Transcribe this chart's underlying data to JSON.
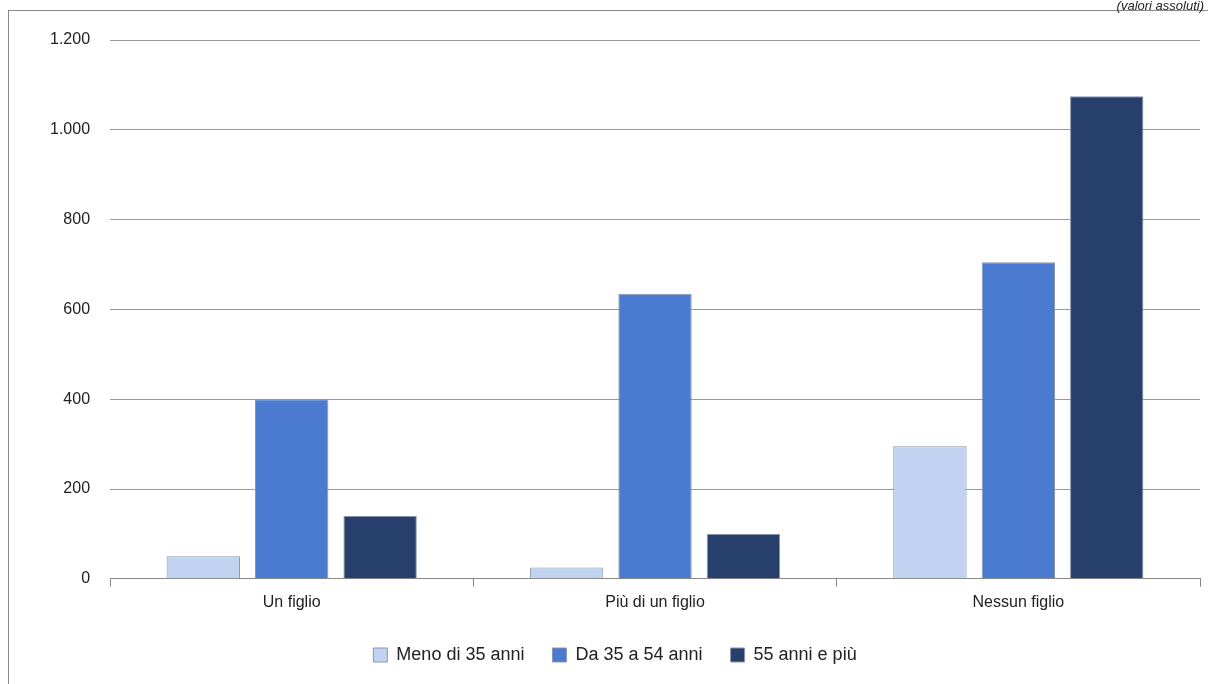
{
  "chart_data": {
    "type": "bar",
    "annotations": [
      "(valori assoluti)"
    ],
    "categories": [
      "Un figlio",
      "Più di un figlio",
      "Nessun figlio"
    ],
    "series": [
      {
        "name": "Meno di 35 anni",
        "color": "#c0d4f2",
        "values": [
          50,
          25,
          295
        ]
      },
      {
        "name": "Da 35 a 54 anni",
        "color": "#4a7bd0",
        "values": [
          400,
          635,
          705
        ]
      },
      {
        "name": "55 anni e più",
        "color": "#263f6d",
        "values": [
          140,
          100,
          1075
        ]
      }
    ],
    "ylim": [
      0,
      1200
    ],
    "yticks": [
      0,
      200,
      400,
      600,
      800,
      {
        "value": 1000,
        "label": "1.000"
      },
      {
        "value": 1200,
        "label": "1.200"
      }
    ],
    "grid": "y",
    "legend": "bottom"
  }
}
